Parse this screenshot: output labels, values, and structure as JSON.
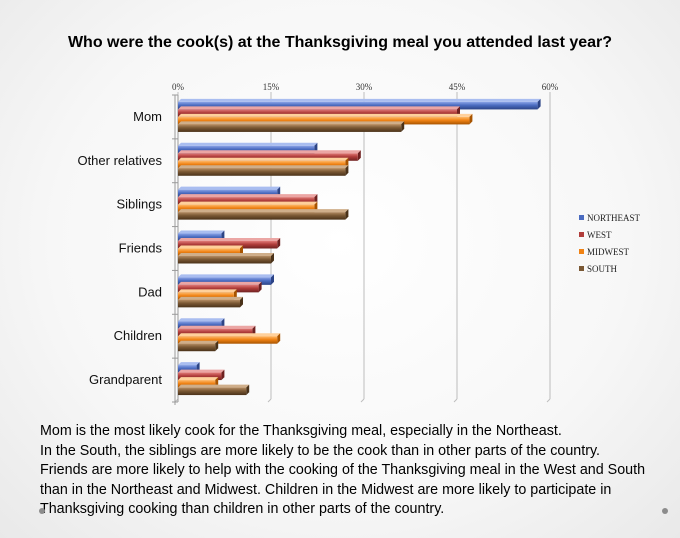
{
  "chart_data": {
    "type": "bar",
    "orientation": "horizontal",
    "title": "Who were the cook(s) at the Thanksgiving meal you attended last year?",
    "xlim": [
      0,
      60
    ],
    "x_ticks": [
      "0%",
      "15%",
      "30%",
      "45%",
      "60%"
    ],
    "x_tick_values": [
      0,
      15,
      30,
      45,
      60
    ],
    "categories": [
      "Mom",
      "Other relatives",
      "Siblings",
      "Friends",
      "Dad",
      "Children",
      "Grandparent"
    ],
    "series": [
      {
        "name": "NORTHEAST",
        "color": "#4a6bc0",
        "values": [
          58,
          22,
          16,
          7,
          15,
          7,
          3
        ]
      },
      {
        "name": "WEST",
        "color": "#b03c3a",
        "values": [
          45,
          29,
          22,
          16,
          13,
          12,
          7
        ]
      },
      {
        "name": "MIDWEST",
        "color": "#f08214",
        "values": [
          47,
          27,
          22,
          10,
          9,
          16,
          6
        ]
      },
      {
        "name": "SOUTH",
        "color": "#7a5834",
        "values": [
          36,
          27,
          27,
          15,
          10,
          6,
          11
        ]
      }
    ],
    "legend_position": "right",
    "grid": true
  },
  "caption": {
    "lines": [
      "Mom is the most likely cook for the Thanksgiving meal, especially in the Northeast.",
      "In the South, the siblings are more likely to be the cook than in other parts of the country.",
      "Friends are more likely to help with the cooking of the Thanksgiving meal in the West and South than in the Northeast and Midwest. Children in the Midwest are more likely to participate in Thanksgiving cooking than children in other parts of the country."
    ]
  }
}
